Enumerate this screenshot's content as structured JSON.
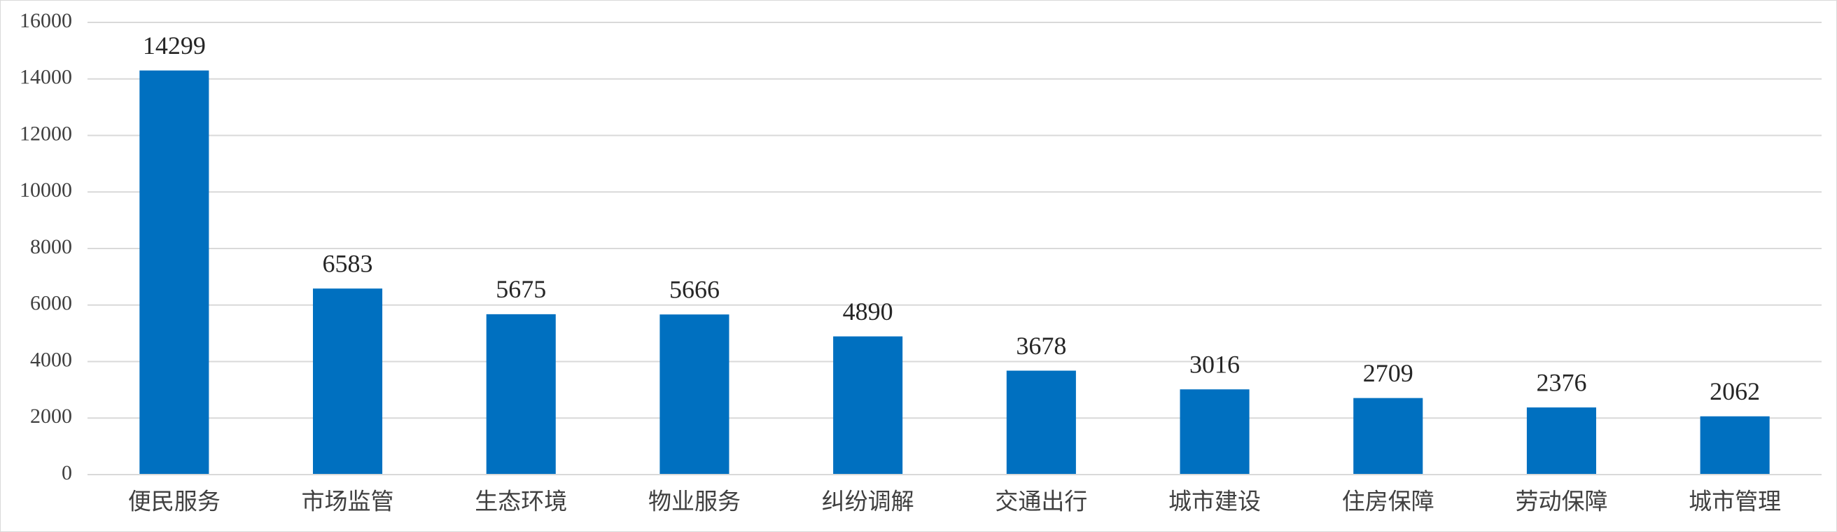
{
  "chart_data": {
    "type": "bar",
    "categories": [
      "便民服务",
      "市场监管",
      "生态环境",
      "物业服务",
      "纠纷调解",
      "交通出行",
      "城市建设",
      "住房保障",
      "劳动保障",
      "城市管理"
    ],
    "values": [
      14299,
      6583,
      5675,
      5666,
      4890,
      3678,
      3016,
      2709,
      2376,
      2062
    ],
    "color": "#0070c0",
    "ylim": [
      0,
      16000
    ],
    "yticks": [
      0,
      2000,
      4000,
      6000,
      8000,
      10000,
      12000,
      14000,
      16000
    ],
    "grid": true
  }
}
